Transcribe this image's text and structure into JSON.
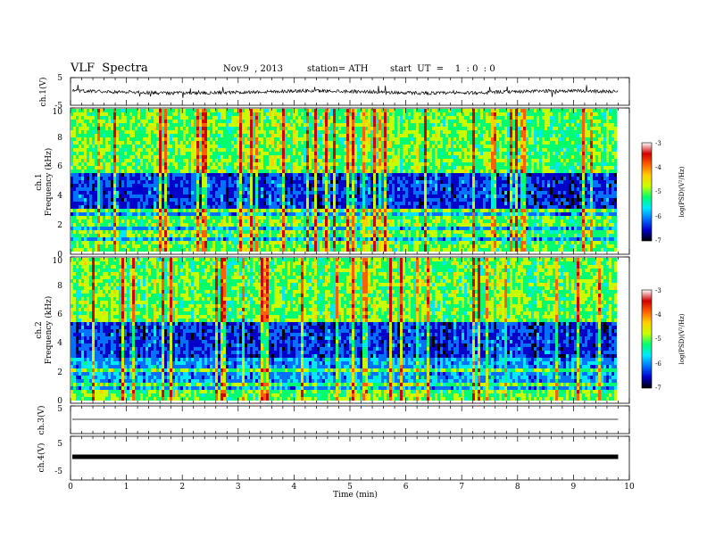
{
  "header": {
    "title": "VLF  Spectra",
    "date": "Nov.9  , 2013",
    "station": "station= ATH",
    "start": "start  UT  =    1  : 0  : 0"
  },
  "chart_data": [
    {
      "type": "line",
      "panel": "ch1-waveform",
      "ylabel": "ch.1(V)",
      "ylim": [
        -5,
        5
      ],
      "yticks": [
        "5",
        "-5"
      ],
      "x_range_min": [
        0,
        9.8
      ],
      "baseline": 0,
      "noise_amplitude": 0.6,
      "color": "#000000"
    },
    {
      "type": "heatmap",
      "panel": "ch1-spectrogram",
      "ylabel": "ch.1",
      "ylabel2": "Frequency  (kHz)",
      "ylim": [
        0,
        10
      ],
      "yticks": [
        "0",
        "2",
        "4",
        "6",
        "8",
        "10"
      ],
      "x_range_min": [
        0,
        9.8
      ],
      "colorbar": {
        "label": "log(PSD)(V²/Hz)",
        "range": [
          -7,
          -3
        ],
        "ticks": [
          "-3",
          "-4",
          "-5",
          "-6",
          "-7"
        ],
        "colors": [
          "#000000",
          "#0000c8",
          "#0070ff",
          "#00e8ff",
          "#00ff70",
          "#c8ff00",
          "#ffd000",
          "#ff6000",
          "#d00000",
          "#ffffff"
        ]
      }
    },
    {
      "type": "heatmap",
      "panel": "ch2-spectrogram",
      "ylabel": "ch.2",
      "ylabel2": "Frequency  (kHz)",
      "ylim": [
        0,
        10
      ],
      "yticks": [
        "0",
        "2",
        "4",
        "6",
        "8",
        "10"
      ],
      "x_range_min": [
        0,
        9.8
      ],
      "colorbar": {
        "label": "log(PSD)(V²/Hz)",
        "range": [
          -7,
          -3
        ],
        "ticks": [
          "-3",
          "-4",
          "-5",
          "-6",
          "-7"
        ],
        "colors": [
          "#000000",
          "#0000c8",
          "#0070ff",
          "#00e8ff",
          "#00ff70",
          "#c8ff00",
          "#ffd000",
          "#ff6000",
          "#d00000",
          "#ffffff"
        ]
      }
    },
    {
      "type": "line",
      "panel": "ch3-waveform",
      "ylabel": "ch.3(V)",
      "ylim": [
        -5,
        5
      ],
      "yticks": [
        "5"
      ],
      "x_range_min": [
        0,
        9.8
      ],
      "baseline": 0,
      "color": "#000000"
    },
    {
      "type": "line",
      "panel": "ch4-waveform",
      "ylabel": "ch.4(V)",
      "ylim": [
        -5,
        5
      ],
      "yticks": [
        "5",
        "-5"
      ],
      "x_range_min": [
        0,
        9.8
      ],
      "baseline": 0,
      "color": "#000000"
    }
  ],
  "x_axis": {
    "label": "Time  (min)",
    "range": [
      0,
      10
    ],
    "ticks": [
      "0",
      "1",
      "2",
      "3",
      "4",
      "5",
      "6",
      "7",
      "8",
      "9",
      "10"
    ]
  }
}
